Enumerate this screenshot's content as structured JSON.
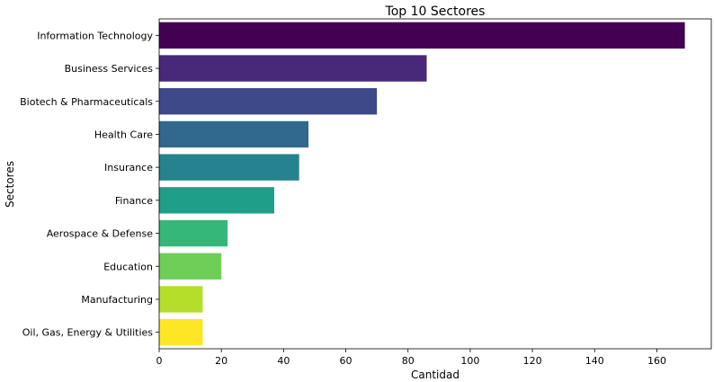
{
  "chart_data": {
    "type": "bar",
    "orientation": "horizontal",
    "title": "Top 10 Sectores",
    "xlabel": "Cantidad",
    "ylabel": "Sectores",
    "categories": [
      "Information Technology",
      "Business Services",
      "Biotech & Pharmaceuticals",
      "Health Care",
      "Insurance",
      "Finance",
      "Aerospace & Defense",
      "Education",
      "Manufacturing",
      "Oil, Gas, Energy & Utilities"
    ],
    "values": [
      169,
      86,
      70,
      48,
      45,
      37,
      22,
      20,
      14,
      14
    ],
    "colors": [
      "#440154",
      "#482878",
      "#3e4989",
      "#31688e",
      "#26828e",
      "#1f9e89",
      "#35b779",
      "#6ece58",
      "#b5de2b",
      "#fde725"
    ],
    "xlim": [
      0,
      177.5
    ],
    "xticks": [
      0,
      20,
      40,
      60,
      80,
      100,
      120,
      140,
      160
    ],
    "grid": false,
    "legend": "none"
  }
}
